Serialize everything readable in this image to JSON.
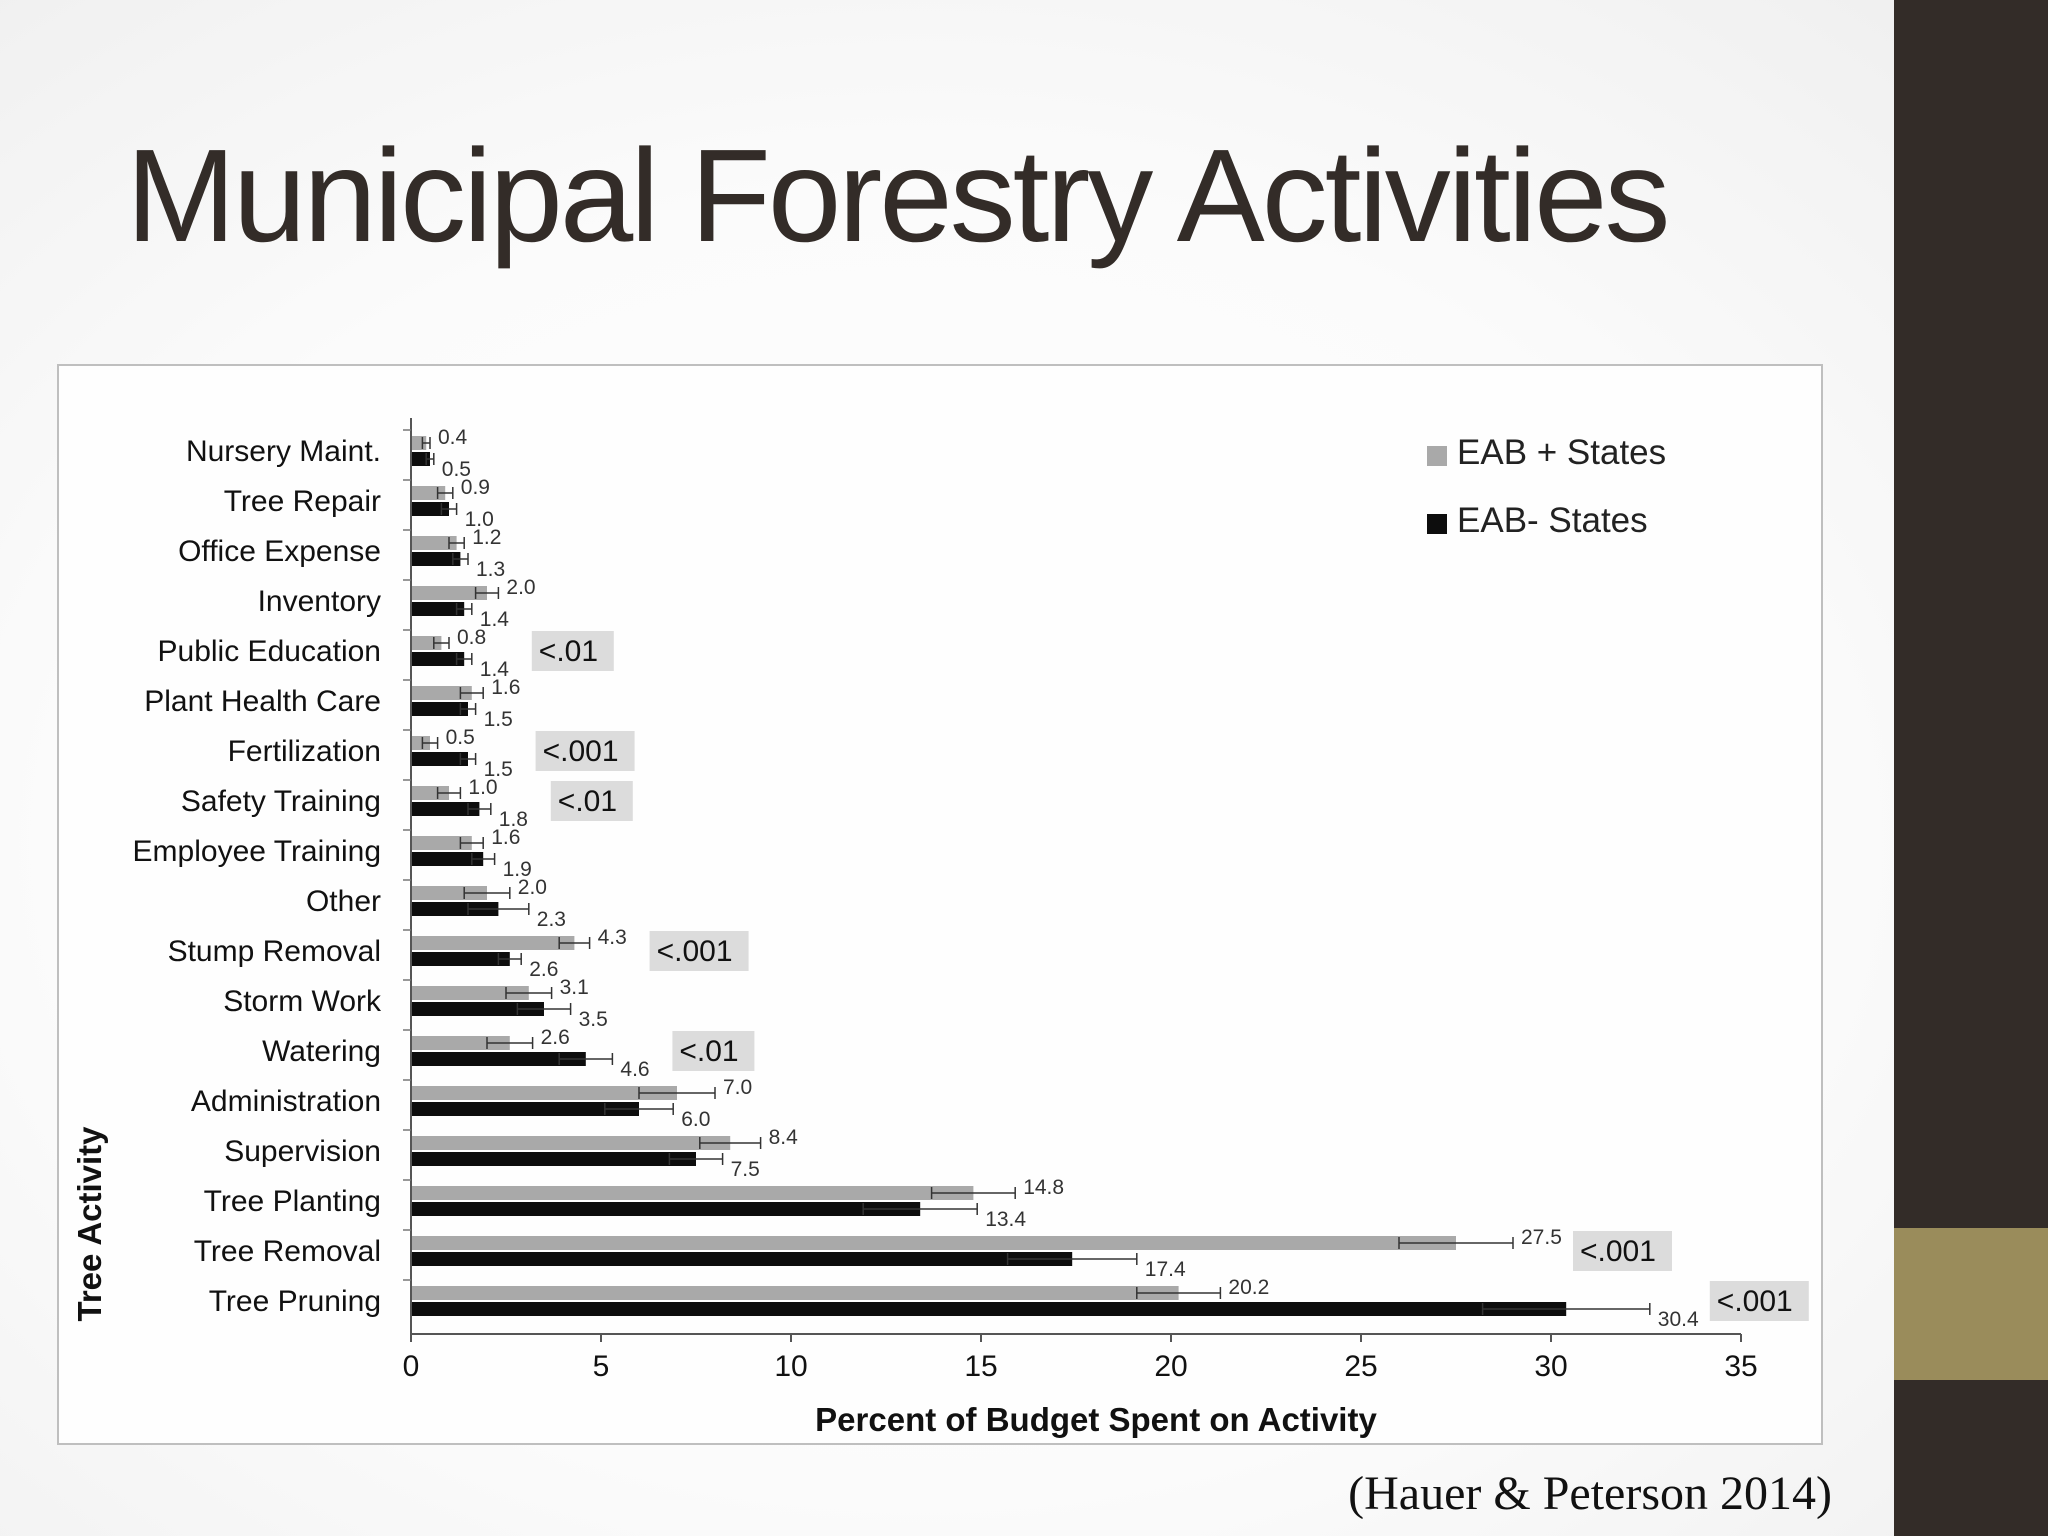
{
  "slide": {
    "title": "Municipal Forestry Activities",
    "citation": "(Hauer & Peterson 2014)"
  },
  "colors": {
    "series_gray": "#a9a9a9",
    "series_black": "#0d0d0d",
    "pvalue_box": "#dcdcdc",
    "sidebar": "#332c28",
    "sidebar_accent": "#9a8c5b"
  },
  "chart_data": {
    "type": "bar",
    "orientation": "horizontal",
    "title": "",
    "xlabel": "Percent of Budget Spent on Activity",
    "ylabel": "Tree Activity",
    "xlim": [
      0,
      35
    ],
    "xticks": [
      0,
      5,
      10,
      15,
      20,
      25,
      30,
      35
    ],
    "grid": false,
    "legend_position": "top-right",
    "categories": [
      "Nursery Maint.",
      "Tree Repair",
      "Office Expense",
      "Inventory",
      "Public Education",
      "Plant Health Care",
      "Fertilization",
      "Safety Training",
      "Employee Training",
      "Other",
      "Stump Removal",
      "Storm Work",
      "Watering",
      "Administration",
      "Supervision",
      "Tree Planting",
      "Tree Removal",
      "Tree Pruning"
    ],
    "series": [
      {
        "name": "EAB + States",
        "values": [
          0.4,
          0.9,
          1.2,
          2.0,
          0.8,
          1.6,
          0.5,
          1.0,
          1.6,
          2.0,
          4.3,
          3.1,
          2.6,
          7.0,
          8.4,
          14.8,
          27.5,
          20.2
        ],
        "value_labels": [
          "0.4",
          "0.9",
          "1.2",
          "2.0",
          "0.8",
          "1.6",
          "0.5",
          "1.0",
          "1.6",
          "2.0",
          "4.3",
          "3.1",
          "2.6",
          "7.0",
          "8.4",
          "14.8",
          "27.5",
          "20.2"
        ],
        "error": [
          0.1,
          0.2,
          0.2,
          0.3,
          0.2,
          0.3,
          0.2,
          0.3,
          0.3,
          0.6,
          0.4,
          0.6,
          0.6,
          1.0,
          0.8,
          1.1,
          1.5,
          1.1
        ]
      },
      {
        "name": "EAB- States",
        "values": [
          0.5,
          1.0,
          1.3,
          1.4,
          1.4,
          1.5,
          1.5,
          1.8,
          1.9,
          2.3,
          2.6,
          3.5,
          4.6,
          6.0,
          7.5,
          13.4,
          17.4,
          30.4
        ],
        "value_labels": [
          "0.5",
          "1.0",
          "1.3",
          "1.4",
          "1.4",
          "1.5",
          "1.5",
          "1.8",
          "1.9",
          "2.3",
          "2.6",
          "3.5",
          "4.6",
          "6.0",
          "7.5",
          "13.4",
          "17.4",
          "30.4"
        ],
        "error": [
          0.1,
          0.2,
          0.2,
          0.2,
          0.2,
          0.2,
          0.2,
          0.3,
          0.3,
          0.8,
          0.3,
          0.7,
          0.7,
          0.9,
          0.7,
          1.5,
          1.7,
          2.2
        ]
      }
    ],
    "p_values": [
      {
        "category": "Public Education",
        "label": "<.01"
      },
      {
        "category": "Fertilization",
        "label": "<.001"
      },
      {
        "category": "Safety Training",
        "label": "<.01"
      },
      {
        "category": "Stump Removal",
        "label": "<.001"
      },
      {
        "category": "Watering",
        "label": "<.01"
      },
      {
        "category": "Tree Removal",
        "label": "<.001"
      },
      {
        "category": "Tree Pruning",
        "label": "<.001"
      }
    ]
  }
}
